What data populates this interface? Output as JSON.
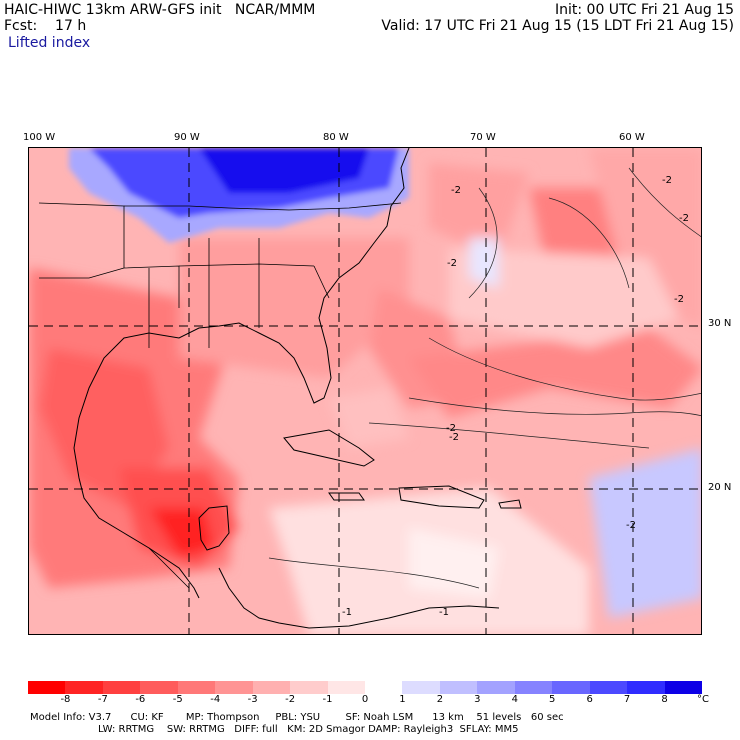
{
  "header": {
    "title": "HAIC-HIWC 13km ARW-GFS init   NCAR/MMM",
    "init": "Init: 00 UTC Fri 21 Aug 15",
    "fcst": "Fcst:    17 h",
    "valid": "Valid: 17 UTC Fri 21 Aug 15 (15 LDT Fri 21 Aug 15)",
    "field": "Lifted index"
  },
  "map": {
    "lon_labels": [
      "100 W",
      "90 W",
      "80 W",
      "70 W",
      "60 W"
    ],
    "lat_labels": [
      "30 N",
      "20 N"
    ],
    "contour_labels": [
      "-2",
      "-2",
      "-2",
      "-2",
      "-2",
      "-2",
      "-2",
      "-1",
      "-1",
      "-2"
    ],
    "colors": {
      "border": "#000000",
      "grid": "#000000"
    }
  },
  "colorbar": {
    "unit": "°C",
    "ticks": [
      "-8",
      "-7",
      "-6",
      "-5",
      "-4",
      "-3",
      "-2",
      "-1",
      "0",
      "1",
      "2",
      "3",
      "4",
      "5",
      "6",
      "7",
      "8"
    ],
    "colors": [
      "#ff0000",
      "#ff2424",
      "#ff4040",
      "#ff5c5c",
      "#ff7878",
      "#ff9494",
      "#ffb0b0",
      "#ffcccc",
      "#ffe6e6",
      "#ffffff",
      "#dddcff",
      "#c0bfff",
      "#a3a2ff",
      "#8683ff",
      "#6966ff",
      "#4c49ff",
      "#2f2cff",
      "#0d00e6"
    ]
  },
  "model_info": {
    "line1": "Model Info: V3.7      CU: KF       MP: Thompson     PBL: YSU        SF: Noah LSM      13 km    51 levels   60 sec",
    "line2": "LW: RRTMG    SW: RRTMG   DIFF: full   KM: 2D Smagor DAMP: Rayleigh3  SFLAY: MM5"
  }
}
